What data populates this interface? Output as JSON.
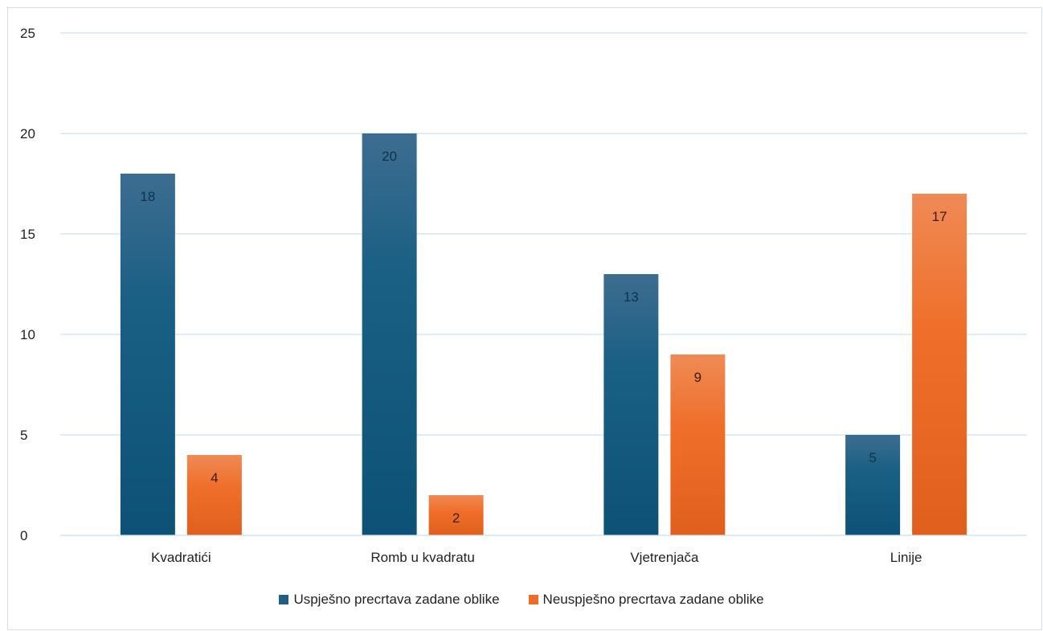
{
  "chart_data": {
    "type": "bar",
    "categories": [
      "Kvadratići",
      "Romb u kvadratu",
      "Vjetrenjača",
      "Linije"
    ],
    "series": [
      {
        "name": "Uspješno precrtava zadane oblike",
        "values": [
          18,
          20,
          13,
          5
        ],
        "color": "#1f5f86"
      },
      {
        "name": "Neuspješno precrtava zadane oblike",
        "values": [
          4,
          2,
          9,
          17
        ],
        "color": "#ec6d29"
      }
    ],
    "ylim": [
      0,
      25
    ],
    "yticks": [
      0,
      5,
      10,
      15,
      20,
      25
    ],
    "grid": true,
    "legend": "bottom",
    "data_labels": true
  }
}
